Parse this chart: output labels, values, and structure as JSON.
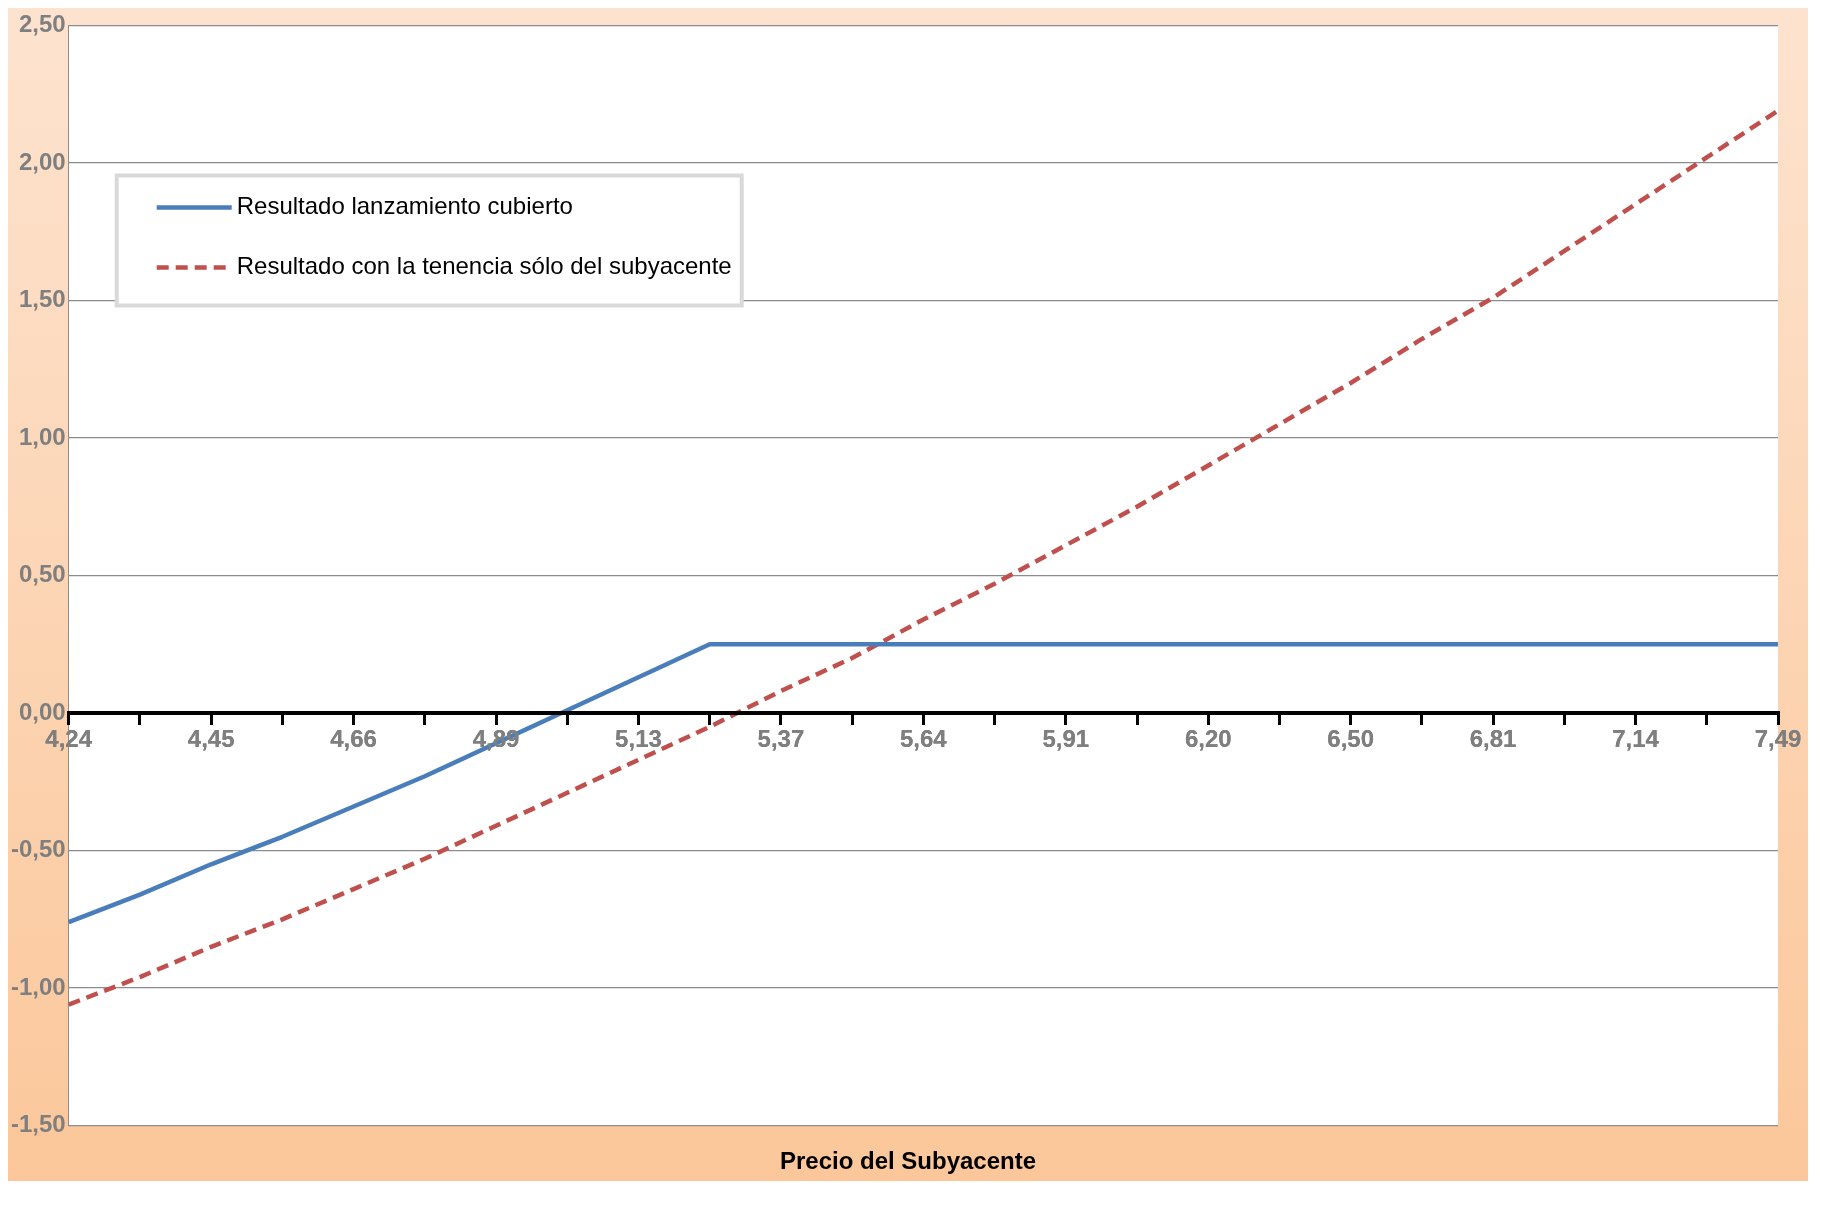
{
  "chart_data": {
    "type": "line",
    "xlabel": "Precio del Subyacente",
    "categories": [
      "4,24",
      null,
      "4,45",
      null,
      "4,66",
      null,
      "4,89",
      null,
      "5,13",
      null,
      "5,37",
      null,
      "5,64",
      null,
      "5,91",
      null,
      "6,20",
      null,
      "6,50",
      null,
      "6,81",
      null,
      "7,14",
      null,
      "7,49"
    ],
    "series": [
      {
        "name": "Resultado lanzamiento cubierto",
        "color": "#4a7ebb",
        "line_style": "solid",
        "values": [
          -0.76,
          -0.66,
          -0.55,
          -0.45,
          -0.34,
          -0.23,
          -0.11,
          0.01,
          0.13,
          0.25,
          0.25,
          0.25,
          0.25,
          0.25,
          0.25,
          0.25,
          0.25,
          0.25,
          0.25,
          0.25,
          0.25,
          0.25,
          0.25,
          0.25,
          0.25
        ]
      },
      {
        "name": "Resultado con la tenencia sólo del subyacente",
        "color": "#c0504d",
        "line_style": "dashed",
        "values": [
          -1.06,
          -0.96,
          -0.85,
          -0.75,
          -0.64,
          -0.53,
          -0.41,
          -0.29,
          -0.17,
          -0.05,
          0.08,
          0.2,
          0.34,
          0.47,
          0.61,
          0.75,
          0.9,
          1.05,
          1.2,
          1.36,
          1.51,
          1.68,
          1.85,
          2.02,
          2.19
        ]
      }
    ],
    "ylim": [
      -1.5,
      2.5
    ],
    "yticks": [
      {
        "value": -1.5,
        "label": "-1,50"
      },
      {
        "value": -1,
        "label": "-1,00"
      },
      {
        "value": -0.5,
        "label": "-0,50"
      },
      {
        "value": 0,
        "label": "0,00"
      },
      {
        "value": 0.5,
        "label": "0,50"
      },
      {
        "value": 1,
        "label": "1,00"
      },
      {
        "value": 1.5,
        "label": "1,50"
      },
      {
        "value": 2,
        "label": "2,00"
      },
      {
        "value": 2.5,
        "label": "2,50"
      }
    ],
    "grid": "y",
    "legend": "top left",
    "marker": "none"
  }
}
